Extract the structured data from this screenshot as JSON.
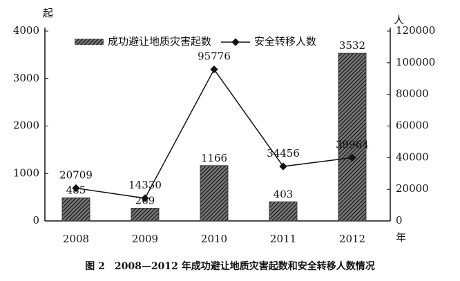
{
  "chart_data": {
    "type": "bar_line",
    "caption": "图 2　2008—2012 年成功避让地质灾害起数和安全转移人数情况",
    "x_label": "年",
    "y_label": "起",
    "y2_label": "人",
    "categories": [
      "2008",
      "2009",
      "2010",
      "2011",
      "2012"
    ],
    "series": [
      {
        "name": "成功避让地质灾害起数",
        "type": "bar",
        "color": "#3a3a3a",
        "values": [
          485,
          269,
          1166,
          403,
          3532
        ]
      },
      {
        "name": "安全转移人数",
        "type": "line",
        "axis": "y2",
        "color": "#111111",
        "values": [
          20709,
          14330,
          95776,
          34456,
          39964
        ]
      }
    ],
    "ylim": [
      0,
      4000
    ],
    "yticks": [
      0,
      1000,
      2000,
      3000,
      4000
    ],
    "y2lim": [
      0,
      120000
    ],
    "y2ticks": [
      0,
      20000,
      40000,
      60000,
      80000,
      100000,
      120000
    ],
    "legend": "top"
  }
}
